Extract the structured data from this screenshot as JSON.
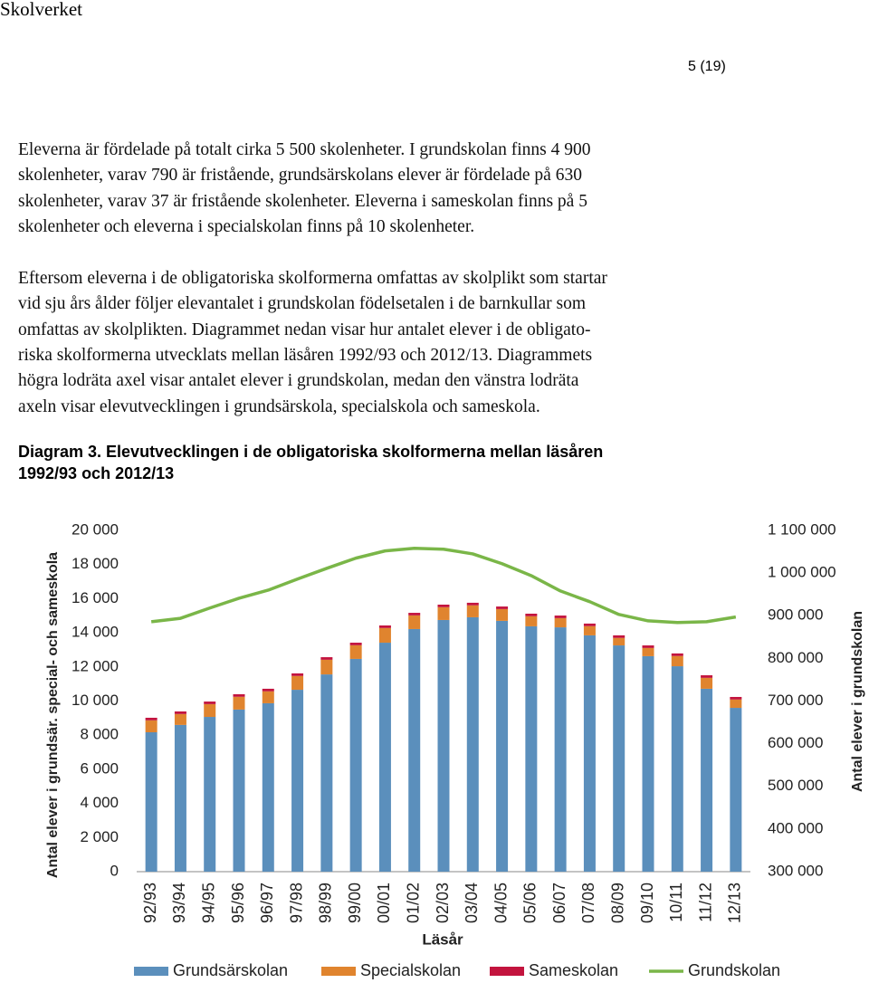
{
  "header": {
    "organization": "Skolverket",
    "page": "5 (19)"
  },
  "paragraphs": [
    [
      "Eleverna är fördelade på totalt cirka 5 500 skolenheter. I grundskolan finns 4 900",
      "skolenheter, varav 790 är fristående, grundsärskolans elever är fördelade på 630",
      "skolenheter, varav 37 är fristående skolenheter. Eleverna i sameskolan finns på 5",
      "skolenheter och eleverna i specialskolan finns på 10 skolenheter."
    ],
    [
      "Eftersom eleverna i de obligatoriska skolformerna omfattas av skolplikt som startar",
      "vid sju års ålder följer elevantalet i grundskolan födelsetalen i de barnkullar som",
      "omfattas av skolplikten. Diagrammet nedan visar hur antalet elever i de obligato-",
      "riska skolformerna utvecklats mellan läsåren 1992/93 och 2012/13. Diagrammets",
      "högra lodräta axel visar antalet elever i grundskolan, medan den vänstra lodräta",
      "axeln visar elevutvecklingen i grundsärskola, specialskola och sameskola."
    ]
  ],
  "caption": [
    "Diagram 3. Elevutvecklingen i de obligatoriska skolformerna mellan läsåren",
    "1992/93 och 2012/13"
  ],
  "chart_data": {
    "type": "bar",
    "stacked": true,
    "x_label": "Läsår",
    "y_label": "Antal elever i grundsär. special- och sameskola",
    "y2_label": "Antal elever i grundskolan",
    "categories": [
      "92/93",
      "93/94",
      "94/95",
      "95/96",
      "96/97",
      "97/98",
      "98/99",
      "99/00",
      "00/01",
      "01/02",
      "02/03",
      "03/04",
      "04/05",
      "05/06",
      "06/07",
      "07/08",
      "08/09",
      "09/10",
      "10/11",
      "11/12",
      "12/13"
    ],
    "series": [
      {
        "name": "Grundsärskolan",
        "color": "#5b8fbc",
        "values": [
          8170,
          8600,
          9070,
          9500,
          9870,
          10660,
          11560,
          12470,
          13420,
          14220,
          14750,
          14910,
          14700,
          14380,
          14320,
          13850,
          13260,
          12630,
          12040,
          10720,
          9600
        ]
      },
      {
        "name": "Specialskolan",
        "color": "#e0842e",
        "values": [
          700,
          640,
          750,
          750,
          700,
          810,
          860,
          800,
          860,
          800,
          750,
          700,
          690,
          590,
          540,
          540,
          440,
          480,
          600,
          640,
          490
        ]
      },
      {
        "name": "Sameskolan",
        "color": "#c3143e",
        "values": [
          150,
          150,
          150,
          150,
          150,
          150,
          150,
          150,
          150,
          150,
          150,
          150,
          150,
          150,
          150,
          150,
          150,
          150,
          150,
          150,
          150
        ]
      },
      {
        "name": "Grundskolan",
        "color": "#7ab648",
        "type": "line",
        "axis": "y2",
        "values": [
          886000,
          894000,
          918000,
          941000,
          960000,
          986000,
          1011000,
          1035000,
          1052000,
          1058000,
          1056000,
          1045000,
          1022000,
          994000,
          958000,
          933000,
          903000,
          888000,
          884000,
          886000,
          897000
        ]
      }
    ],
    "ylim": [
      0,
      20000
    ],
    "yticks": [
      0,
      {
        "value": 2000,
        "label": "2 000"
      },
      {
        "value": 4000,
        "label": "4 000"
      },
      {
        "value": 6000,
        "label": "6 000"
      },
      {
        "value": 8000,
        "label": "8 000"
      },
      {
        "value": 10000,
        "label": "10 000"
      },
      {
        "value": 12000,
        "label": "12 000"
      },
      {
        "value": 14000,
        "label": "14 000"
      },
      {
        "value": 16000,
        "label": "16 000"
      },
      {
        "value": 18000,
        "label": "18 000"
      },
      {
        "value": 20000,
        "label": "20 000"
      }
    ],
    "y2lim": [
      300000,
      1100000
    ],
    "y2ticks": [
      {
        "value": 300000,
        "label": "300 000"
      },
      {
        "value": 400000,
        "label": "400 000"
      },
      {
        "value": 500000,
        "label": "500 000"
      },
      {
        "value": 600000,
        "label": "600 000"
      },
      {
        "value": 700000,
        "label": "700 000"
      },
      {
        "value": 800000,
        "label": "800 000"
      },
      {
        "value": 900000,
        "label": "900 000"
      },
      {
        "value": 1000000,
        "label": "1 000 000"
      },
      {
        "value": 1100000,
        "label": "1 100 000"
      }
    ],
    "grid": false,
    "legend": "bottom"
  }
}
